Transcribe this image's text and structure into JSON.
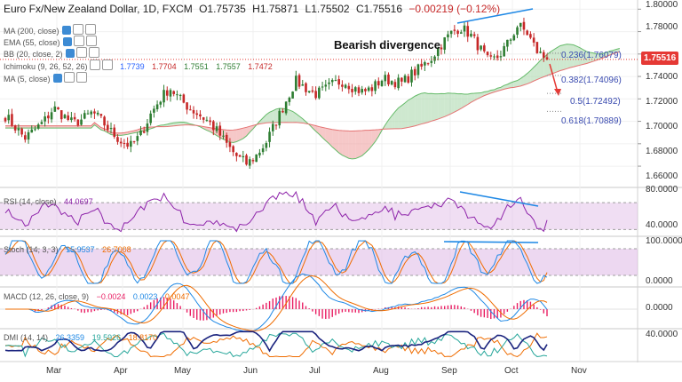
{
  "header": {
    "symbol": "Euro Fx/New Zealand Dollar, 1D, FXCM",
    "open": "O1.75735",
    "high": "H1.75871",
    "low": "L1.75502",
    "close": "C1.75516",
    "change": "−0.00219 (−0.12%)"
  },
  "annotation": "Bearish divergence",
  "overlays": [
    {
      "label": "MA (200, close)"
    },
    {
      "label": "EMA (55, close)"
    },
    {
      "label": "BB (20, close, 2)"
    },
    {
      "label": "Ichimoku (9, 26, 52, 26)",
      "values": [
        "1.7739",
        "1.7704",
        "1.7551",
        "1.7557",
        "1.7472"
      ],
      "colors": [
        "#2962ff",
        "#c62828",
        "#2e7d32",
        "#2e7d32",
        "#c62828"
      ]
    },
    {
      "label": "MA (5, close)"
    }
  ],
  "fib_levels": [
    {
      "label": "0.236(1.76079)"
    },
    {
      "label": "0.382(1.74096)"
    },
    {
      "label": "0.5(1.72492)"
    },
    {
      "label": "0.618(1.70889)"
    }
  ],
  "last_price": "1.75516",
  "price_axis": [
    "1.80000",
    "1.78000",
    "1.76000",
    "1.74000",
    "1.72000",
    "1.70000",
    "1.68000",
    "1.66000"
  ],
  "rsi": {
    "label": "RSI (14, close)",
    "value": "44.0697",
    "axis": [
      "80.0000",
      "40.0000"
    ]
  },
  "stoch": {
    "label": "Stoch (14, 3, 3)",
    "k": "15.9537",
    "d": "26.7008",
    "axis": [
      "100.0000",
      "0.0000"
    ]
  },
  "macd": {
    "label": "MACD (12, 26, close, 9)",
    "hist": "−0.0024",
    "macd": "0.0023",
    "signal": "0.0047",
    "axis": [
      "0.0000"
    ]
  },
  "dmi": {
    "label": "DMI (14, 14)",
    "adx": "26.3359",
    "plus_di": "19.5926",
    "minus_di": "18.8170",
    "axis": [
      "40.0000"
    ]
  },
  "x_labels": [
    "Mar",
    "Apr",
    "May",
    "Jun",
    "Jul",
    "Aug",
    "Sep",
    "Oct",
    "Nov"
  ],
  "colors": {
    "up": "#26a69a",
    "down": "#ef5350",
    "candle_up": "#2e7d32",
    "candle_down": "#c62828",
    "cloud_bull": "#a5d6a7",
    "cloud_bear": "#ef9a9a",
    "div_line": "#1e88e5",
    "rsi": "#8e24aa",
    "stoch_k": "#1e88e5",
    "stoch_d": "#ef6c00",
    "macd": "#1e88e5",
    "signal": "#ef6c00",
    "hist": "#e91e63"
  },
  "chart_data": {
    "type": "candlestick",
    "title": "Euro Fx/New Zealand Dollar, 1D, FXCM",
    "ylim": [
      1.645,
      1.805
    ],
    "x_months": [
      "Mar",
      "Apr",
      "May",
      "Jun",
      "Jul",
      "Aug",
      "Sep",
      "Oct",
      "Nov"
    ],
    "close_path": [
      1.705,
      1.695,
      1.685,
      1.692,
      1.7,
      1.712,
      1.705,
      1.698,
      1.702,
      1.708,
      1.7,
      1.69,
      1.682,
      1.678,
      1.688,
      1.706,
      1.72,
      1.73,
      1.72,
      1.712,
      1.706,
      1.7,
      1.69,
      1.678,
      1.668,
      1.662,
      1.67,
      1.682,
      1.7,
      1.718,
      1.736,
      1.73,
      1.724,
      1.728,
      1.734,
      1.736,
      1.73,
      1.726,
      1.73,
      1.738,
      1.736,
      1.734,
      1.742,
      1.748,
      1.756,
      1.768,
      1.778,
      1.784,
      1.778,
      1.766,
      1.752,
      1.758,
      1.77,
      1.786,
      1.778,
      1.762,
      1.7552
    ],
    "fibonacci": [
      {
        "level": 0.236,
        "price": 1.76079
      },
      {
        "level": 0.382,
        "price": 1.74096
      },
      {
        "level": 0.5,
        "price": 1.72492
      },
      {
        "level": 0.618,
        "price": 1.70889
      }
    ],
    "ichimoku": {
      "tenkan": 1.7739,
      "kijun": 1.7704,
      "senkou_a": 1.7551,
      "senkou_b": 1.7557,
      "chikou": 1.7472
    },
    "rsi_last": 44.0697,
    "stoch_last": {
      "k": 15.9537,
      "d": 26.7008
    },
    "macd_last": {
      "hist": -0.0024,
      "macd": 0.0023,
      "signal": 0.0047
    },
    "dmi_last": {
      "adx": 26.3359,
      "plus_di": 19.5926,
      "minus_di": 18.817
    }
  }
}
